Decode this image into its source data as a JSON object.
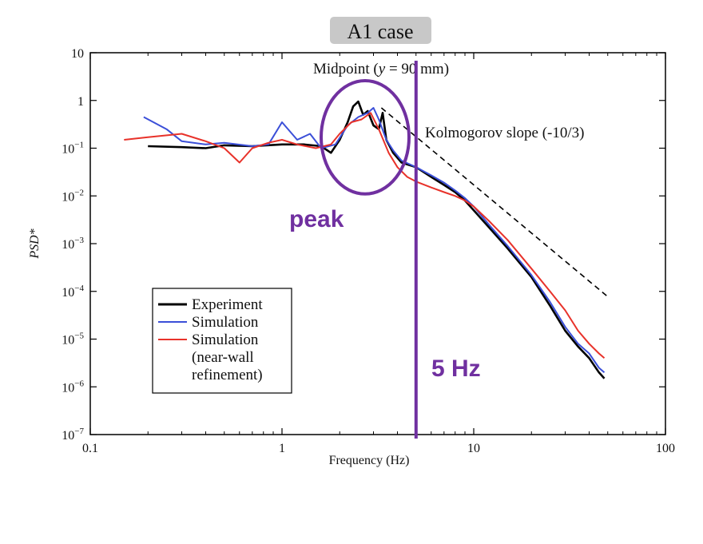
{
  "header": {
    "case_label": "A1 case"
  },
  "chart_data": {
    "type": "line",
    "title": "Midpoint (y = 90 mm)",
    "title_parts": [
      "Midpoint (",
      "y",
      " = 90 mm)"
    ],
    "xlabel": "Frequency (Hz)",
    "ylabel": "PSD*",
    "xscale": "log",
    "yscale": "log",
    "xlim": [
      0.1,
      100
    ],
    "ylim": [
      1e-07,
      10
    ],
    "xticks": [
      {
        "value": 0.1,
        "label": "0.1"
      },
      {
        "value": 1,
        "label": "1"
      },
      {
        "value": 10,
        "label": "10"
      },
      {
        "value": 100,
        "label": "100"
      }
    ],
    "yticks": [
      {
        "value": 10,
        "base": "10",
        "exp": ""
      },
      {
        "value": 1,
        "base": "1",
        "exp": ""
      },
      {
        "value": 0.1,
        "base": "10",
        "exp": "−1"
      },
      {
        "value": 0.01,
        "base": "10",
        "exp": "−2"
      },
      {
        "value": 0.001,
        "base": "10",
        "exp": "−3"
      },
      {
        "value": 0.0001,
        "base": "10",
        "exp": "−4"
      },
      {
        "value": 1e-05,
        "base": "10",
        "exp": "−5"
      },
      {
        "value": 1e-06,
        "base": "10",
        "exp": "−6"
      },
      {
        "value": 1e-07,
        "base": "10",
        "exp": "−7"
      }
    ],
    "grid": false,
    "legend_position": "bottom-left",
    "legend_entries": [
      "Experiment",
      "Simulation",
      "Simulation",
      "(near-wall",
      "refinement)"
    ],
    "series": [
      {
        "name": "Experiment",
        "color": "#000000",
        "x": [
          0.2,
          0.3,
          0.4,
          0.5,
          0.7,
          1.0,
          1.3,
          1.6,
          1.8,
          2.0,
          2.2,
          2.35,
          2.5,
          2.65,
          2.8,
          3.0,
          3.2,
          3.35,
          3.5,
          3.8,
          4.2,
          5.0,
          6.0,
          7.0,
          8.0,
          9.0,
          10,
          12,
          15,
          20,
          25,
          30,
          35,
          40,
          45,
          48
        ],
        "y": [
          0.11,
          0.105,
          0.1,
          0.115,
          0.11,
          0.12,
          0.12,
          0.11,
          0.08,
          0.15,
          0.35,
          0.75,
          0.95,
          0.5,
          0.6,
          0.3,
          0.25,
          0.55,
          0.15,
          0.08,
          0.05,
          0.04,
          0.025,
          0.017,
          0.012,
          0.008,
          0.005,
          0.0022,
          0.0008,
          0.0002,
          5e-05,
          1.5e-05,
          7e-06,
          4e-06,
          2e-06,
          1.5e-06
        ]
      },
      {
        "name": "Simulation",
        "color": "#3b4fd8",
        "x": [
          0.19,
          0.25,
          0.3,
          0.4,
          0.5,
          0.7,
          0.85,
          1.0,
          1.2,
          1.4,
          1.6,
          1.9,
          2.2,
          2.5,
          2.8,
          3.0,
          3.2,
          3.5,
          3.8,
          4.2,
          5.0,
          6.0,
          7.0,
          8.0,
          9.0,
          10,
          12,
          15,
          20,
          25,
          30,
          35,
          40,
          45,
          48
        ],
        "y": [
          0.45,
          0.25,
          0.14,
          0.12,
          0.13,
          0.11,
          0.12,
          0.35,
          0.15,
          0.2,
          0.1,
          0.12,
          0.3,
          0.45,
          0.55,
          0.7,
          0.4,
          0.15,
          0.09,
          0.055,
          0.04,
          0.027,
          0.019,
          0.013,
          0.009,
          0.006,
          0.0025,
          0.0009,
          0.00022,
          6e-05,
          1.8e-05,
          8e-06,
          5e-06,
          2.5e-06,
          2e-06
        ]
      },
      {
        "name": "Simulation (near-wall refinement)",
        "color": "#e8322a",
        "x": [
          0.15,
          0.2,
          0.3,
          0.4,
          0.5,
          0.6,
          0.7,
          0.85,
          1.0,
          1.2,
          1.5,
          1.8,
          2.0,
          2.3,
          2.6,
          2.9,
          3.2,
          3.6,
          4.0,
          4.5,
          5.0,
          6.0,
          7.0,
          8.0,
          9.0,
          10,
          12,
          15,
          20,
          25,
          30,
          35,
          40,
          45,
          48
        ],
        "y": [
          0.15,
          0.17,
          0.2,
          0.14,
          0.1,
          0.05,
          0.1,
          0.13,
          0.15,
          0.12,
          0.1,
          0.12,
          0.2,
          0.35,
          0.4,
          0.55,
          0.25,
          0.08,
          0.04,
          0.025,
          0.02,
          0.015,
          0.012,
          0.01,
          0.008,
          0.006,
          0.003,
          0.0012,
          0.0003,
          0.0001,
          4e-05,
          1.5e-05,
          8e-06,
          5e-06,
          4e-06
        ]
      },
      {
        "name": "Kolmogorov slope (-10/3)",
        "color": "#000000",
        "dashed": true,
        "x": [
          3.3,
          50
        ],
        "y": [
          0.7,
          7.74e-05
        ]
      }
    ],
    "annotations": [
      {
        "text": "Kolmogorov slope (-10/3)",
        "x": 5.0,
        "y": 0.18
      },
      {
        "text": "peak",
        "x": 1.7,
        "y": 0.0045,
        "color": "#7030a0"
      },
      {
        "text": "5 Hz",
        "x": 5.4,
        "y": 1.8e-06,
        "color": "#7030a0"
      }
    ],
    "marker_line": {
      "x": 5,
      "color": "#7030a0"
    },
    "peak_circle": {
      "x_range": [
        1.6,
        4.6
      ],
      "y_range": [
        0.011,
        2.6
      ],
      "color": "#7030a0"
    }
  }
}
